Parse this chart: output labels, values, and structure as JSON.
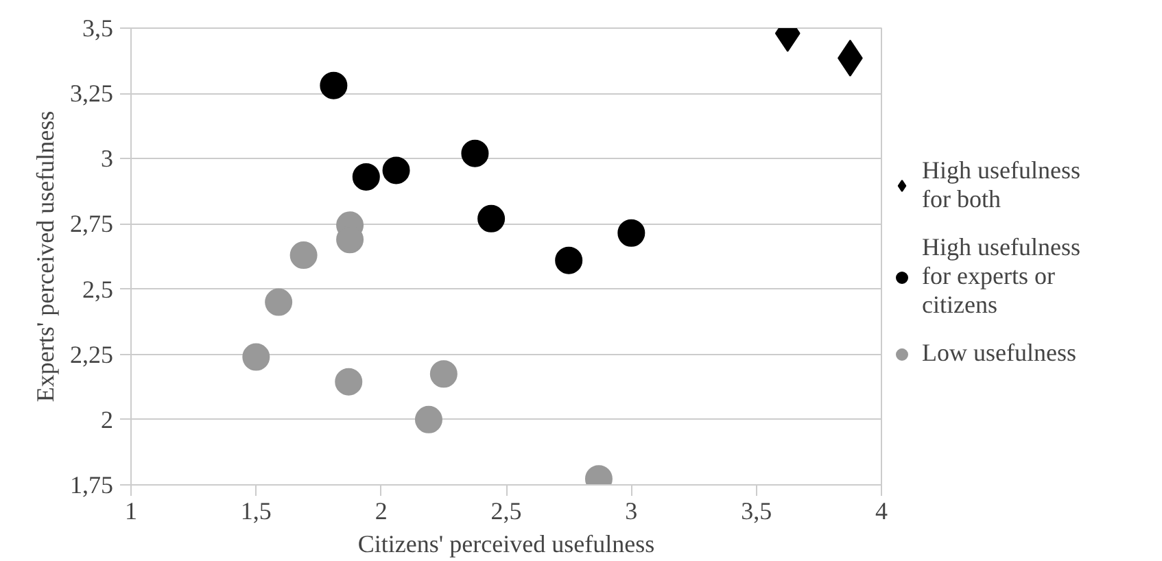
{
  "chart_data": {
    "type": "scatter",
    "xlabel": "Citizens' perceived usefulness",
    "ylabel": "Experts' perceived usefulness",
    "xlim": [
      1,
      4
    ],
    "xticks": [
      1,
      {
        "value": 1.5,
        "label": "1,5"
      },
      2,
      {
        "value": 2.5,
        "label": "2,5"
      },
      3,
      {
        "value": 3.5,
        "label": "3,5"
      },
      4
    ],
    "ylim": [
      1.75,
      3.5
    ],
    "yticks": [
      {
        "value": 1.75,
        "label": "1,75"
      },
      2,
      {
        "value": 2.25,
        "label": "2,25"
      },
      {
        "value": 2.5,
        "label": "2,5"
      },
      {
        "value": 2.75,
        "label": "2,75"
      },
      3,
      {
        "value": 3.25,
        "label": "3,25"
      },
      {
        "value": 3.5,
        "label": "3,5"
      }
    ],
    "grid": "y",
    "legend": "right",
    "series": [
      {
        "name": "High usefulness for both",
        "color": "#000000",
        "marker": "diamond",
        "x": [
          3.625,
          3.875
        ],
        "values": [
          3.48,
          3.385
        ]
      },
      {
        "name": "High usefulness for experts or citizens",
        "color": "#000000",
        "marker": "circle",
        "x": [
          1.81,
          1.94,
          2.06,
          2.375,
          2.44,
          2.75,
          3.0
        ],
        "values": [
          3.28,
          2.93,
          2.955,
          3.02,
          2.77,
          2.61,
          2.715
        ]
      },
      {
        "name": "Low usefulness",
        "color": "#999999",
        "marker": "circle",
        "x": [
          1.875,
          1.875,
          1.69,
          1.59,
          1.5,
          1.87,
          2.25,
          2.19,
          2.87
        ],
        "values": [
          2.745,
          2.69,
          2.63,
          2.45,
          2.24,
          2.145,
          2.175,
          2.0,
          1.773
        ]
      }
    ]
  }
}
